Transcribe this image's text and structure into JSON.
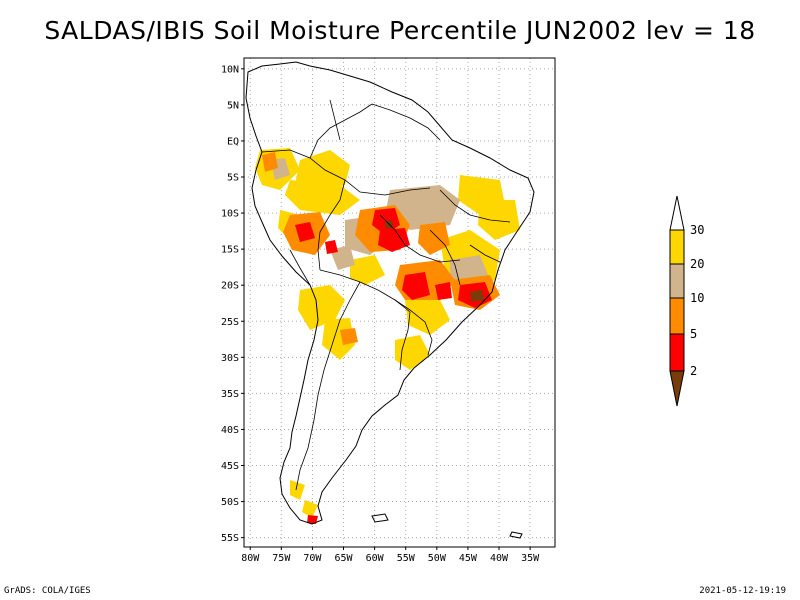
{
  "title": "SALDAS/IBIS Soil Moisture Percentile JUN2002 lev = 18",
  "lat_labels": [
    "10N",
    "5N",
    "EQ",
    "5S",
    "10S",
    "15S",
    "20S",
    "25S",
    "30S",
    "35S",
    "40S",
    "45S",
    "50S",
    "55S"
  ],
  "lon_labels": [
    "80W",
    "75W",
    "70W",
    "65W",
    "60W",
    "55W",
    "50W",
    "45W",
    "40W",
    "35W"
  ],
  "lat_values": [
    10,
    5,
    0,
    -5,
    -10,
    -15,
    -20,
    -25,
    -30,
    -35,
    -40,
    -45,
    -50,
    -55
  ],
  "lon_values": [
    -80,
    -75,
    -70,
    -65,
    -60,
    -55,
    -50,
    -45,
    -40,
    -35
  ],
  "colorbar": {
    "levels": [
      "2",
      "5",
      "10",
      "20",
      "30"
    ],
    "colors": [
      "#7a3d0a",
      "#ff0000",
      "#ff8c00",
      "#d2b48c",
      "#ffd700",
      "#ffffff"
    ]
  },
  "footer_left": "GrADS: COLA/IGES",
  "footer_right": "2021-05-12-19:19"
}
